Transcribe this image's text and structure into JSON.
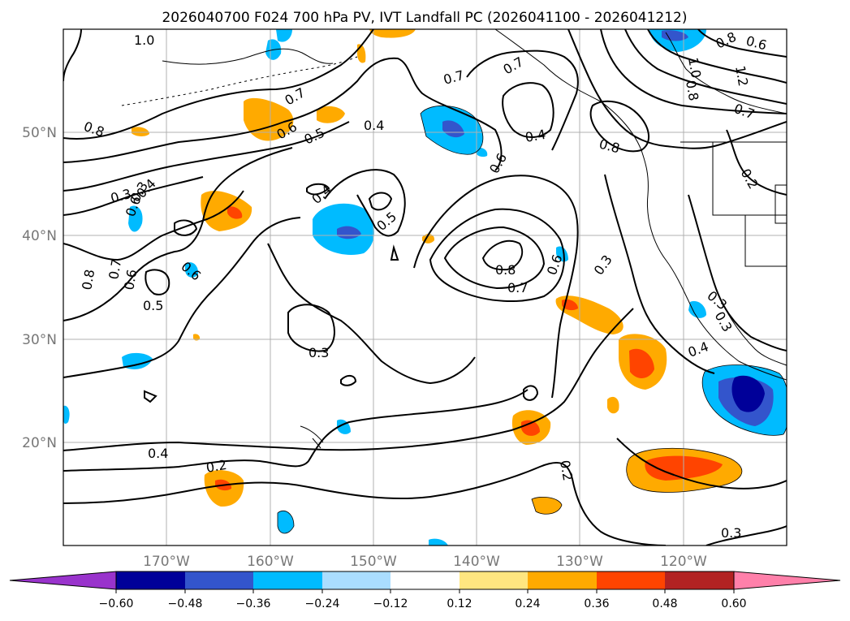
{
  "title": "2026040700 F024 700 hPa PV, IVT Landfall PC (2026041100 - 2026041212)",
  "map": {
    "lon_ticks": [
      "170°W",
      "160°W",
      "150°W",
      "140°W",
      "130°W",
      "120°W"
    ],
    "lat_ticks": [
      "50°N",
      "40°N",
      "30°N",
      "20°N"
    ],
    "contour_labels": [
      "1.0",
      "0.8",
      "0.7",
      "0.6",
      "0.5",
      "0.3",
      "0.4",
      "0.6",
      "0.7",
      "0.4",
      "0.3",
      "0.4",
      "0.5",
      "0.6",
      "0.8",
      "0.6",
      "0.7",
      "0.6",
      "0.8",
      "0.7",
      "0.5",
      "0.3",
      "0.8",
      "0.7",
      "0.6",
      "0.3",
      "0.4",
      "0.3",
      "0.4",
      "0.2",
      "0.2",
      "0.3",
      "1.0",
      "1.2",
      "0.8",
      "0.7",
      "0.6",
      "0.8",
      "0.2",
      "0.3",
      "0.4"
    ],
    "colors": {
      "neg_060": "#9933cc",
      "neg_048": "#000099",
      "neg_036": "#3355cc",
      "neg_024": "#00bbff",
      "neg_012": "#aaddff",
      "neutral": "#ffffff",
      "pos_012": "#ffe680",
      "pos_024": "#ffaa00",
      "pos_036": "#ff4400",
      "pos_048": "#b22222",
      "pos_060": "#ff80aa"
    }
  },
  "colorbar": {
    "ticks": [
      "−0.60",
      "−0.48",
      "−0.36",
      "−0.24",
      "−0.12",
      "0.12",
      "0.24",
      "0.36",
      "0.48",
      "0.60"
    ]
  }
}
